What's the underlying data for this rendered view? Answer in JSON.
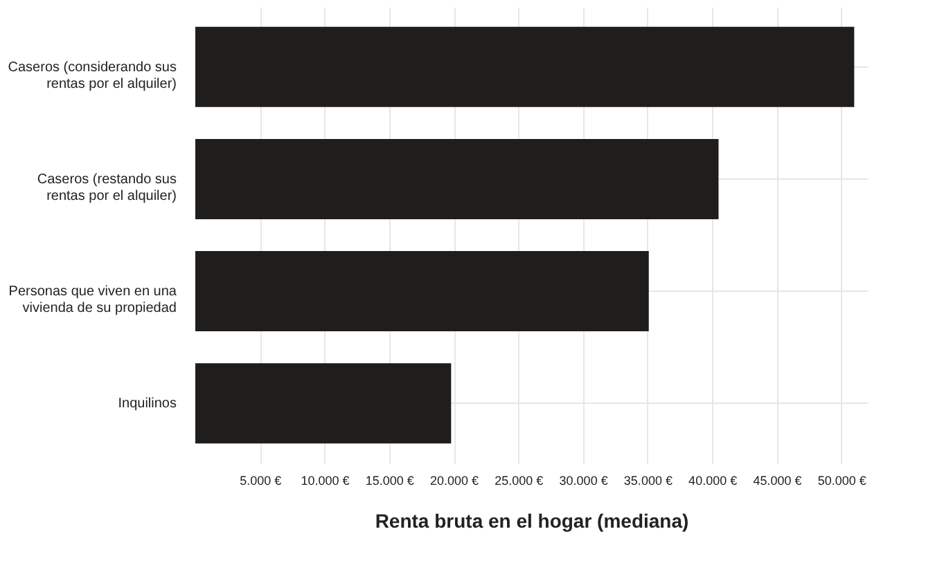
{
  "chart_data": {
    "type": "bar",
    "orientation": "horizontal",
    "xlabel": "Renta bruta en el hogar (mediana)",
    "categories": [
      "Caseros (considerando sus rentas por el alquiler)",
      "Caseros (restando sus rentas por el alquiler)",
      "Personas que viven en una vivienda de su propiedad",
      "Inquilinos"
    ],
    "values": [
      51000,
      40500,
      35100,
      19800
    ],
    "color": "#1f1e1c",
    "xlim": [
      0,
      52000
    ],
    "xticks": [
      {
        "value": 5000,
        "label": "5.000 €"
      },
      {
        "value": 10000,
        "label": "10.000 €"
      },
      {
        "value": 15000,
        "label": "15.000 €"
      },
      {
        "value": 20000,
        "label": "20.000 €"
      },
      {
        "value": 25000,
        "label": "25.000 €"
      },
      {
        "value": 30000,
        "label": "30.000 €"
      },
      {
        "value": 35000,
        "label": "35.000 €"
      },
      {
        "value": 40000,
        "label": "40.000 €"
      },
      {
        "value": 45000,
        "label": "45.000 €"
      },
      {
        "value": 50000,
        "label": "50.000 €"
      }
    ],
    "grid": true
  }
}
